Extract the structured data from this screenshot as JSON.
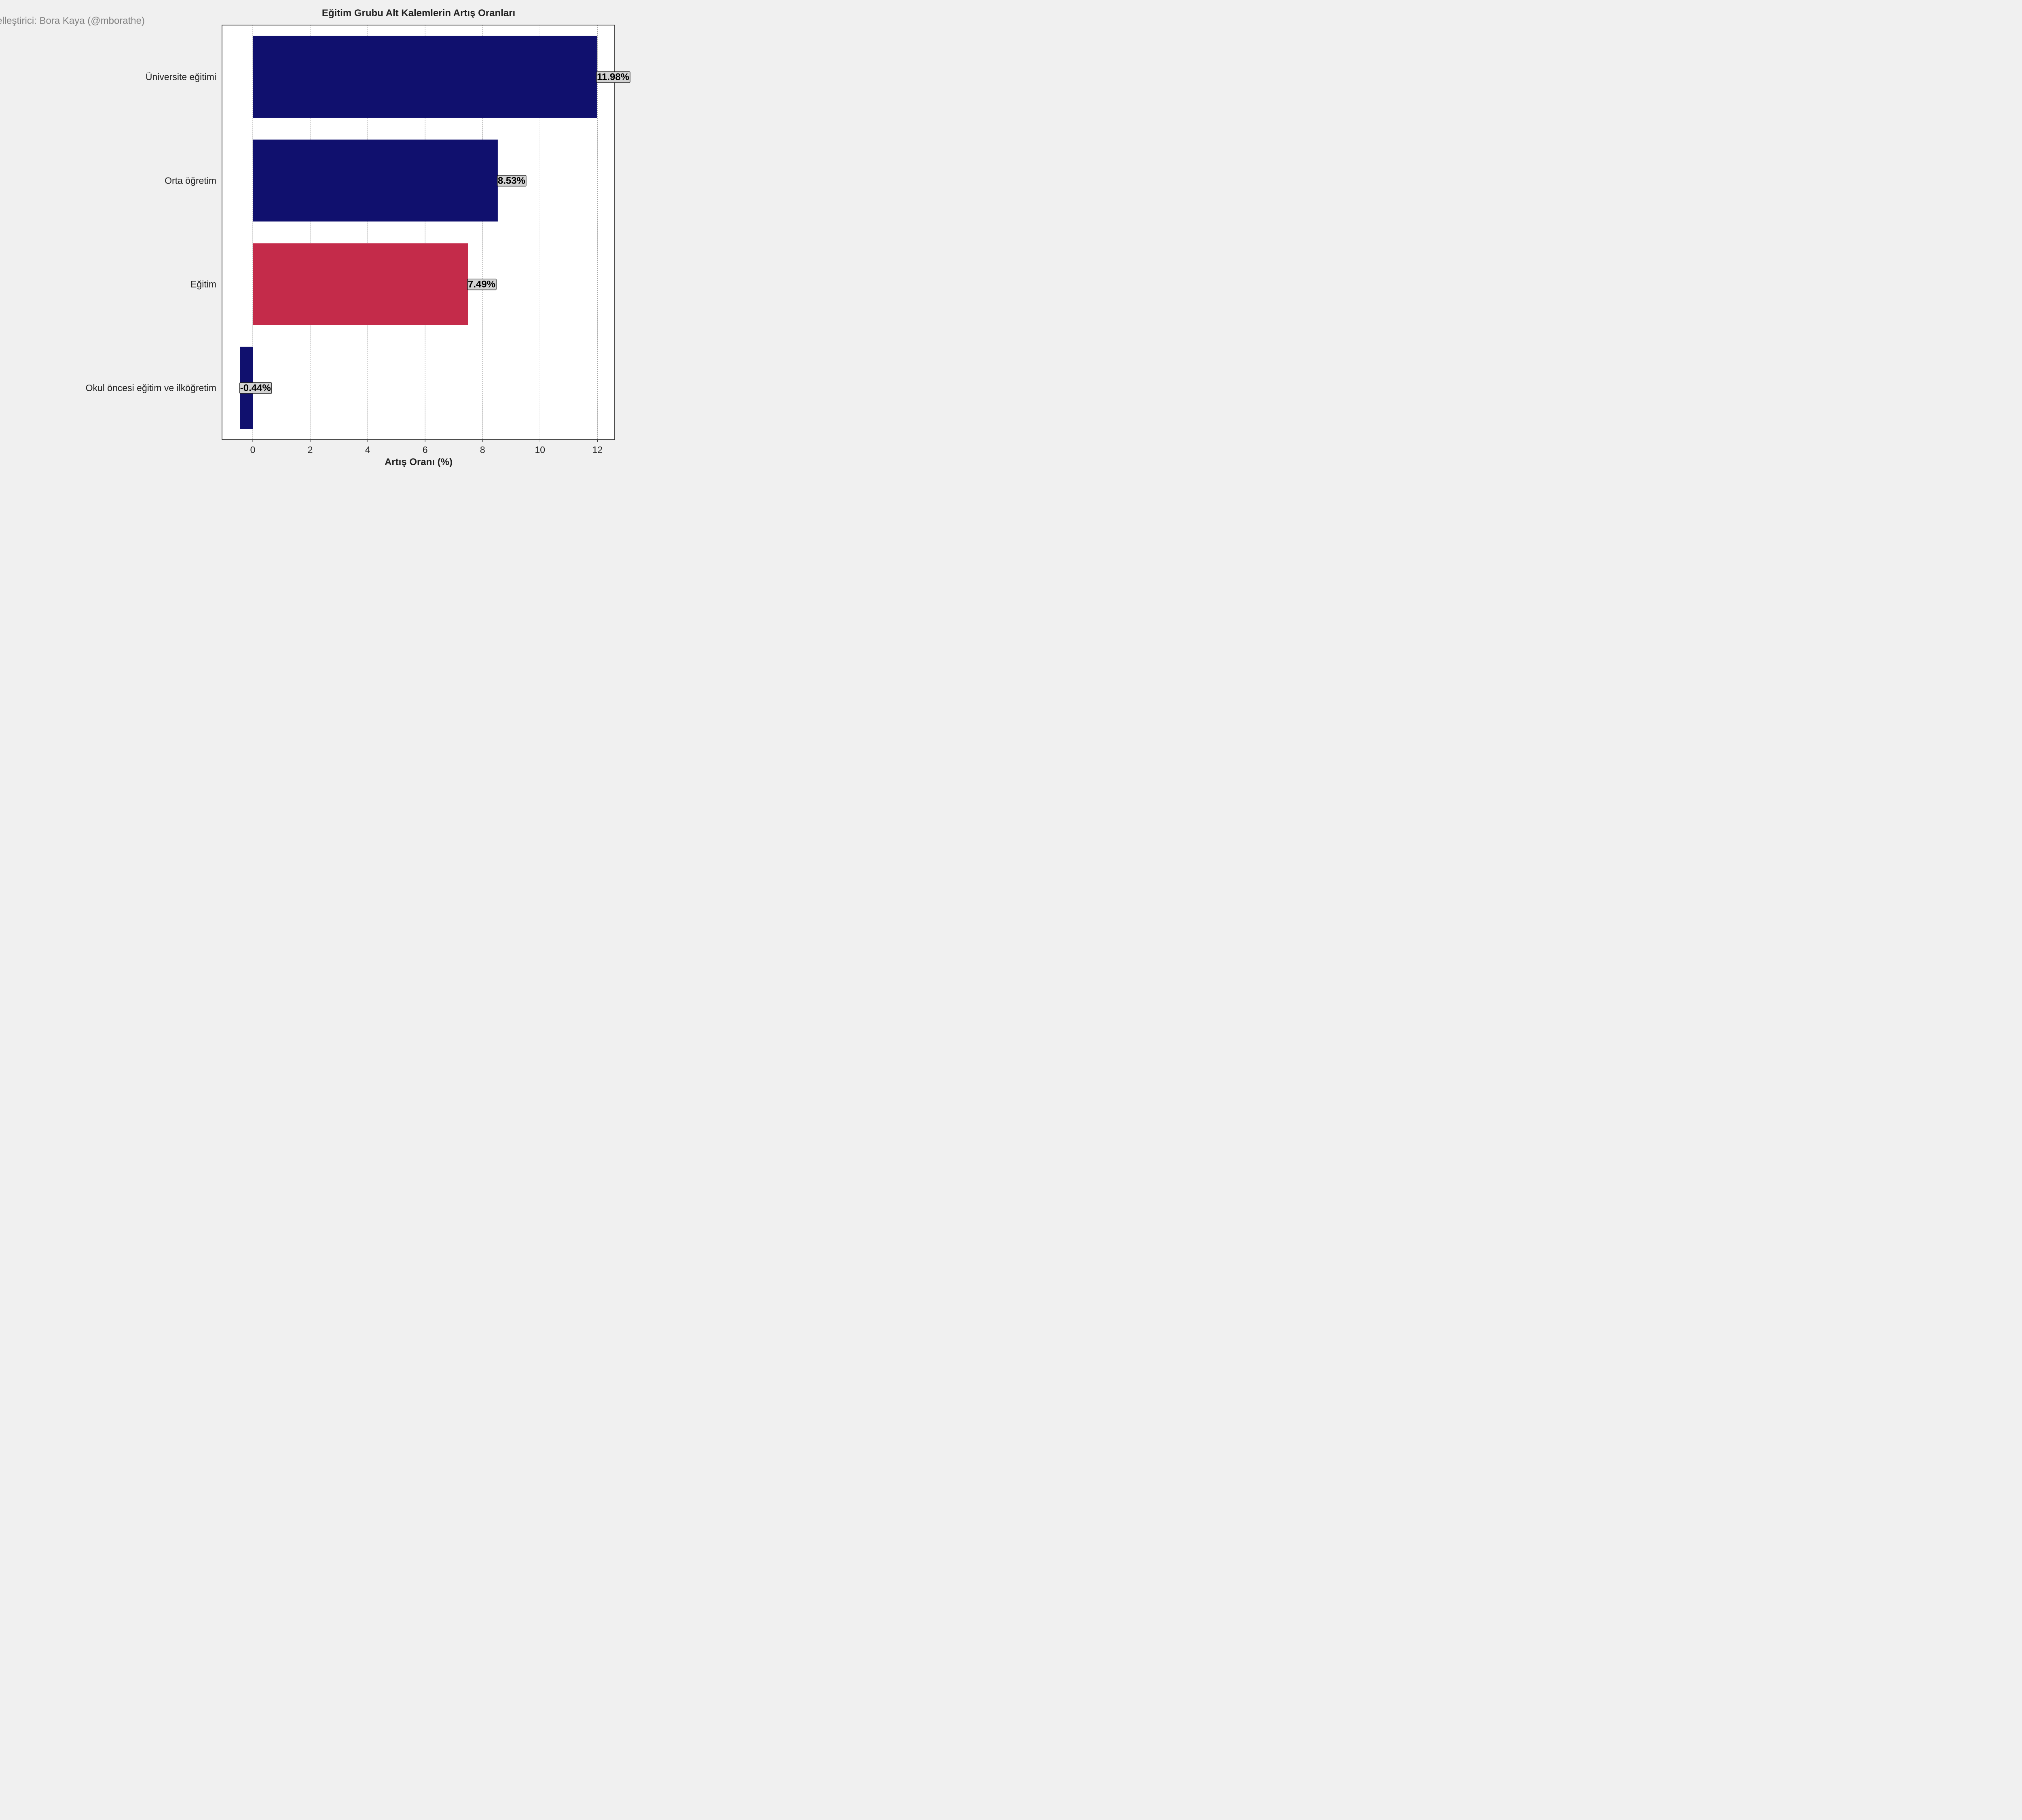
{
  "watermark": "Görselleştirici: Bora Kaya (@mborathe)",
  "chart_data": {
    "type": "bar",
    "orientation": "horizontal",
    "title": "Eğitim Grubu Alt Kalemlerin Artış Oranları",
    "xlabel": "Artış Oranı (%)",
    "ylabel": "",
    "xlim": [
      -1.07,
      12.6
    ],
    "xticks": [
      "0",
      "2",
      "4",
      "6",
      "8",
      "10",
      "12"
    ],
    "grid": "vertical",
    "categories": [
      "Üniversite eğitimi",
      "Orta öğretim",
      "Eğitim",
      "Okul öncesi eğitim ve ilköğretim"
    ],
    "values": [
      11.98,
      8.53,
      7.49,
      -0.44
    ],
    "value_labels": [
      "11.98%",
      "8.53%",
      "7.49%",
      "-0.44%"
    ],
    "bar_colors": [
      "#10106e",
      "#10106e",
      "#c42b4a",
      "#10106e"
    ]
  }
}
